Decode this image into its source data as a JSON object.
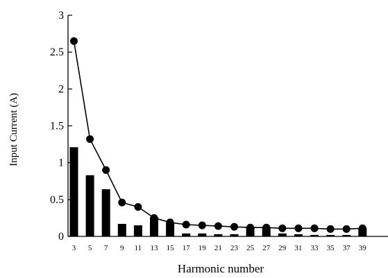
{
  "chart_data": {
    "type": "bar",
    "title": "",
    "xlabel": "Harmonic number",
    "ylabel": "Input Current (A)",
    "ylim": [
      0,
      3
    ],
    "yticks": [
      0,
      0.5,
      1,
      1.5,
      2,
      2.5,
      3
    ],
    "ytick_labels": [
      "0",
      "0.5",
      "1",
      "1.5",
      "2",
      "2.5",
      "3"
    ],
    "grid": false,
    "legend": "none",
    "categories": [
      "3",
      "5",
      "7",
      "9",
      "11",
      "13",
      "15",
      "17",
      "19",
      "21",
      "23",
      "25",
      "27",
      "29",
      "31",
      "33",
      "35",
      "37",
      "39"
    ],
    "series": [
      {
        "type": "bar",
        "values": [
          1.21,
          0.83,
          0.64,
          0.17,
          0.15,
          0.26,
          0.19,
          0.04,
          0.04,
          0.03,
          0.03,
          0.13,
          0.13,
          0.04,
          0.03,
          0.02,
          0.02,
          0.02,
          0.11
        ],
        "color": "#000000"
      },
      {
        "type": "line",
        "values": [
          2.65,
          1.32,
          0.9,
          0.46,
          0.4,
          0.25,
          0.19,
          0.16,
          0.15,
          0.14,
          0.13,
          0.12,
          0.12,
          0.11,
          0.11,
          0.11,
          0.1,
          0.1,
          0.11
        ],
        "color": "#000000",
        "marker": "circle"
      }
    ]
  }
}
